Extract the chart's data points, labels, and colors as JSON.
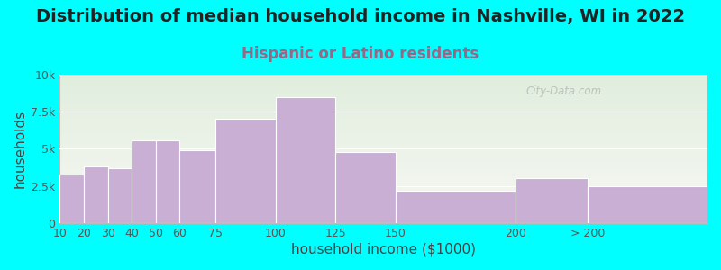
{
  "title": "Distribution of median household income in Nashville, WI in 2022",
  "subtitle": "Hispanic or Latino residents",
  "xlabel": "household income ($1000)",
  "ylabel": "households",
  "bar_lefts": [
    10,
    20,
    30,
    40,
    50,
    60,
    75,
    100,
    125,
    150,
    200,
    230
  ],
  "bar_widths": [
    10,
    10,
    10,
    10,
    10,
    15,
    25,
    25,
    25,
    50,
    30,
    50
  ],
  "bar_values": [
    3300,
    3800,
    3700,
    5600,
    5600,
    4900,
    7000,
    8500,
    4800,
    2200,
    3000,
    2500
  ],
  "bar_color": "#c9afd4",
  "bar_edgecolor": "#ffffff",
  "xlim": [
    10,
    280
  ],
  "xtick_positions": [
    10,
    20,
    30,
    40,
    50,
    60,
    75,
    100,
    125,
    150,
    200,
    230
  ],
  "xtick_labels": [
    "10",
    "20",
    "30",
    "40",
    "50",
    "60",
    "75",
    "100",
    "125",
    "150",
    "200",
    "> 200"
  ],
  "ylim": [
    0,
    10000
  ],
  "yticks": [
    0,
    2500,
    5000,
    7500,
    10000
  ],
  "ytick_labels": [
    "0",
    "2.5k",
    "5k",
    "7.5k",
    "10k"
  ],
  "bg_color": "#00ffff",
  "plot_bg_top": "#e0eedd",
  "plot_bg_bottom": "#f8f8f4",
  "title_fontsize": 14,
  "subtitle_fontsize": 12,
  "subtitle_color": "#996688",
  "axis_label_fontsize": 11,
  "tick_fontsize": 9,
  "watermark": "City-Data.com"
}
